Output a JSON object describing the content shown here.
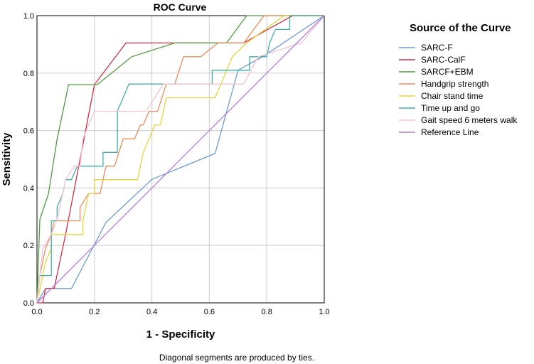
{
  "chart_data": {
    "type": "line",
    "title": "ROC Curve",
    "xlabel": "1 - Specificity",
    "ylabel": "Sensitivity",
    "xlim": [
      0,
      1
    ],
    "ylim": [
      0,
      1
    ],
    "x_ticks": [
      "0.0",
      "0.2",
      "0.4",
      "0.6",
      "0.8",
      "1.0"
    ],
    "y_ticks": [
      "0.0",
      "0.2",
      "0.4",
      "0.6",
      "0.8",
      "1.0"
    ],
    "grid": true,
    "legend_title": "Source of the Curve",
    "legend_position": "right",
    "footnote": "Diagonal segments are produced by ties.",
    "series": [
      {
        "name": "SARC-F",
        "color": "#6b9bd6",
        "points": [
          [
            0,
            0
          ],
          [
            0.03,
            0.05
          ],
          [
            0.12,
            0.05
          ],
          [
            0.24,
            0.28
          ],
          [
            0.4,
            0.43
          ],
          [
            0.62,
            0.52
          ],
          [
            0.7,
            0.81
          ],
          [
            0.79,
            0.86
          ],
          [
            1,
            1
          ]
        ]
      },
      {
        "name": "SARC-CalF",
        "color": "#d62c43",
        "points": [
          [
            0,
            0
          ],
          [
            0.02,
            0.0
          ],
          [
            0.03,
            0.05
          ],
          [
            0.06,
            0.05
          ],
          [
            0.1,
            0.24
          ],
          [
            0.2,
            0.76
          ],
          [
            0.31,
            0.905
          ],
          [
            0.67,
            0.905
          ],
          [
            0.72,
            0.905
          ],
          [
            0.8,
            0.95
          ],
          [
            0.89,
            1
          ],
          [
            1,
            1
          ]
        ]
      },
      {
        "name": "SARCF+EBM",
        "color": "#4e9c3f",
        "points": [
          [
            0,
            0
          ],
          [
            0.01,
            0.29
          ],
          [
            0.04,
            0.38
          ],
          [
            0.07,
            0.57
          ],
          [
            0.11,
            0.76
          ],
          [
            0.21,
            0.76
          ],
          [
            0.33,
            0.857
          ],
          [
            0.48,
            0.905
          ],
          [
            0.66,
            0.905
          ],
          [
            0.73,
            1
          ],
          [
            1,
            1
          ]
        ]
      },
      {
        "name": "Handgrip strength",
        "color": "#f2895c",
        "points": [
          [
            0,
            0
          ],
          [
            0.01,
            0.095
          ],
          [
            0.03,
            0.19
          ],
          [
            0.05,
            0.24
          ],
          [
            0.06,
            0.286
          ],
          [
            0.15,
            0.286
          ],
          [
            0.15,
            0.333
          ],
          [
            0.18,
            0.381
          ],
          [
            0.22,
            0.381
          ],
          [
            0.24,
            0.476
          ],
          [
            0.27,
            0.476
          ],
          [
            0.3,
            0.571
          ],
          [
            0.34,
            0.571
          ],
          [
            0.36,
            0.619
          ],
          [
            0.37,
            0.619
          ],
          [
            0.39,
            0.667
          ],
          [
            0.42,
            0.667
          ],
          [
            0.45,
            0.762
          ],
          [
            0.48,
            0.762
          ],
          [
            0.51,
            0.857
          ],
          [
            0.57,
            0.857
          ],
          [
            0.63,
            0.905
          ],
          [
            0.72,
            0.905
          ],
          [
            0.79,
            1
          ],
          [
            1,
            1
          ]
        ]
      },
      {
        "name": "Chair stand time",
        "color": "#e2d63c",
        "points": [
          [
            0,
            0
          ],
          [
            0.03,
            0.143
          ],
          [
            0.05,
            0.19
          ],
          [
            0.05,
            0.238
          ],
          [
            0.16,
            0.238
          ],
          [
            0.16,
            0.286
          ],
          [
            0.18,
            0.381
          ],
          [
            0.2,
            0.381
          ],
          [
            0.2,
            0.429
          ],
          [
            0.35,
            0.429
          ],
          [
            0.36,
            0.476
          ],
          [
            0.37,
            0.524
          ],
          [
            0.39,
            0.571
          ],
          [
            0.41,
            0.619
          ],
          [
            0.43,
            0.619
          ],
          [
            0.45,
            0.714
          ],
          [
            0.62,
            0.714
          ],
          [
            0.64,
            0.762
          ],
          [
            0.66,
            0.81
          ],
          [
            0.68,
            0.857
          ],
          [
            0.73,
            0.905
          ],
          [
            0.86,
            1
          ],
          [
            1,
            1
          ]
        ]
      },
      {
        "name": "Time up and go",
        "color": "#3fb2a2",
        "points": [
          [
            0,
            0
          ],
          [
            0.01,
            0.095
          ],
          [
            0.05,
            0.095
          ],
          [
            0.05,
            0.286
          ],
          [
            0.07,
            0.286
          ],
          [
            0.07,
            0.333
          ],
          [
            0.09,
            0.381
          ],
          [
            0.1,
            0.429
          ],
          [
            0.12,
            0.429
          ],
          [
            0.14,
            0.476
          ],
          [
            0.23,
            0.476
          ],
          [
            0.23,
            0.524
          ],
          [
            0.28,
            0.524
          ],
          [
            0.28,
            0.667
          ],
          [
            0.3,
            0.714
          ],
          [
            0.32,
            0.762
          ],
          [
            0.47,
            0.762
          ],
          [
            0.61,
            0.762
          ],
          [
            0.61,
            0.81
          ],
          [
            0.74,
            0.81
          ],
          [
            0.74,
            0.857
          ],
          [
            0.8,
            0.857
          ],
          [
            0.81,
            0.905
          ],
          [
            0.83,
            0.952
          ],
          [
            0.88,
            0.952
          ],
          [
            0.88,
            1
          ],
          [
            1,
            1
          ]
        ]
      },
      {
        "name": "Gait speed 6 meters walk",
        "color": "#f5c3d8",
        "points": [
          [
            0,
            0
          ],
          [
            0.02,
            0.19
          ],
          [
            0.05,
            0.238
          ],
          [
            0.07,
            0.29
          ],
          [
            0.1,
            0.429
          ],
          [
            0.13,
            0.476
          ],
          [
            0.15,
            0.476
          ],
          [
            0.16,
            0.571
          ],
          [
            0.2,
            0.667
          ],
          [
            0.38,
            0.667
          ],
          [
            0.44,
            0.762
          ],
          [
            0.65,
            0.762
          ],
          [
            0.72,
            0.762
          ],
          [
            0.77,
            0.857
          ],
          [
            0.92,
            0.905
          ],
          [
            1,
            1
          ]
        ]
      },
      {
        "name": "Reference Line",
        "color": "#b57ce0",
        "points": [
          [
            0,
            0
          ],
          [
            1,
            1
          ]
        ]
      }
    ]
  }
}
